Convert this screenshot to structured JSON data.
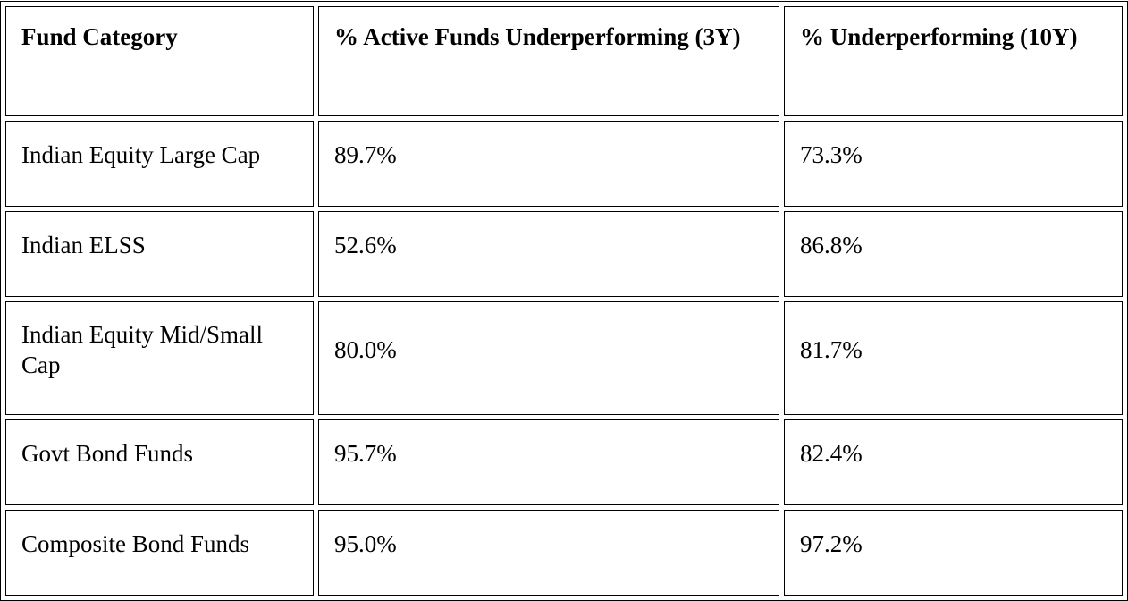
{
  "table": {
    "header": [
      "Fund Category",
      "% Active Funds Underperforming (3Y)",
      "% Underperforming (10Y)"
    ],
    "rows": [
      [
        "Indian Equity Large Cap",
        "89.7%",
        "73.3%"
      ],
      [
        "Indian ELSS",
        "52.6%",
        "86.8%"
      ],
      [
        "Indian Equity Mid/Small Cap",
        "80.0%",
        "81.7%"
      ],
      [
        "Govt Bond Funds",
        "95.7%",
        "82.4%"
      ],
      [
        "Composite Bond Funds",
        "95.0%",
        "97.2%"
      ]
    ]
  }
}
